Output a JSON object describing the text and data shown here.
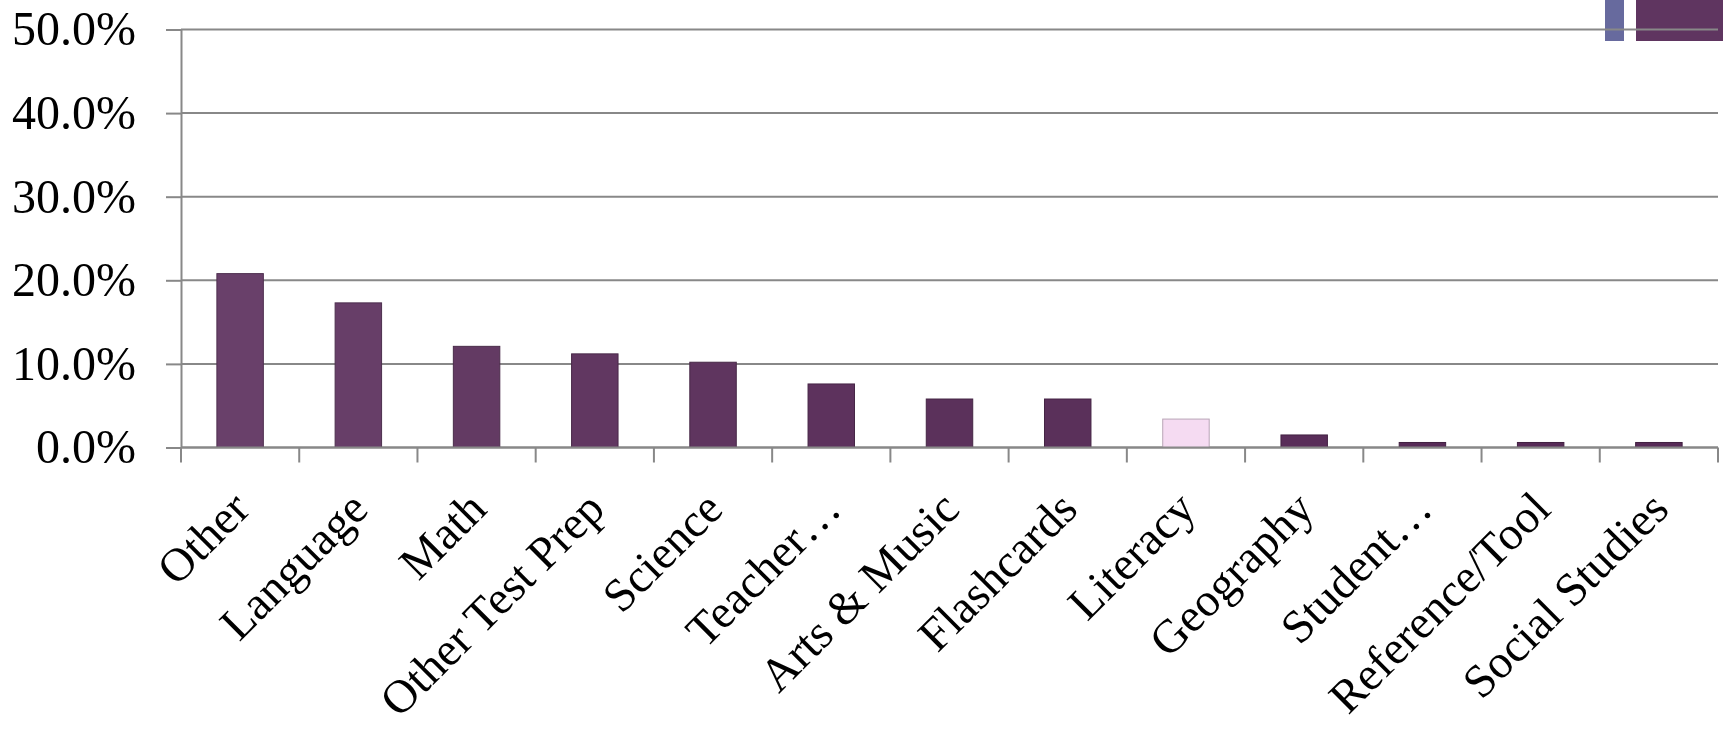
{
  "chart_data": {
    "type": "bar",
    "categories": [
      "Other",
      "Language",
      "Math",
      "Other Test Prep",
      "Science",
      "Teacher…",
      "Arts & Music",
      "Flashcards",
      "Literacy",
      "Geography",
      "Student…",
      "Reference/Tool",
      "Social Studies"
    ],
    "values": [
      20.8,
      17.3,
      12.1,
      11.2,
      10.2,
      7.6,
      5.8,
      5.8,
      3.4,
      1.5,
      0.6,
      0.6,
      0.6
    ],
    "colors": [
      "#69406a",
      "#673e68",
      "#633a63",
      "#613761",
      "#5f355f",
      "#5d325d",
      "#5b315b",
      "#5a305a",
      "#f5dbf2",
      "#592d59",
      "#572b57",
      "#572b57",
      "#572b57"
    ],
    "ylim": [
      0,
      50
    ],
    "yticks": [
      {
        "value": 0,
        "label": "0.0%"
      },
      {
        "value": 10,
        "label": "10.0%"
      },
      {
        "value": 20,
        "label": "20.0%"
      },
      {
        "value": 30,
        "label": "30.0%"
      },
      {
        "value": 40,
        "label": "40.0%"
      },
      {
        "value": 50,
        "label": "50.0%"
      }
    ],
    "grid": "y"
  }
}
